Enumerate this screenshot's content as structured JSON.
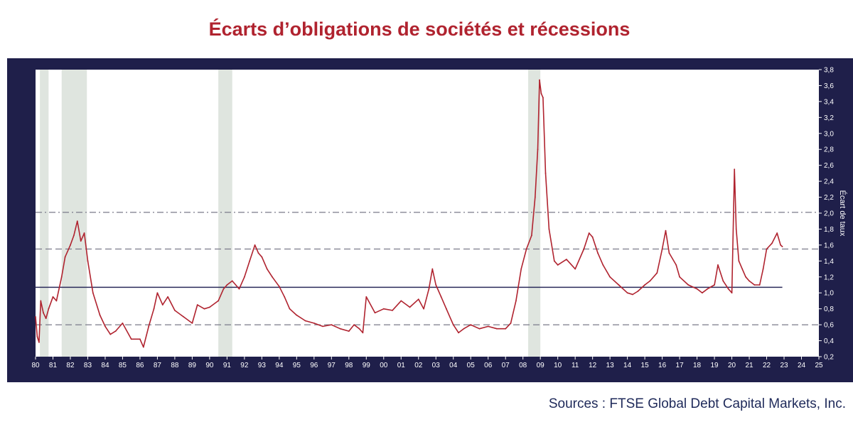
{
  "title": "Écarts d’obligations de sociétés et récessions",
  "source": "Sources : FTSE Global Debt Capital Markets, Inc.",
  "colors": {
    "frame": "#1f1f4a",
    "plot_bg": "#ffffff",
    "line": "#b0232f",
    "recession": "#dfe5df",
    "mean_line": "#2a2a5a",
    "band_line": "#7a7a8a",
    "title": "#b0232f"
  },
  "chart_data": {
    "type": "line",
    "title": "Écarts d’obligations de sociétés et récessions",
    "ylabel": "Écart de taux",
    "xlabel": "",
    "ylim": [
      0.2,
      3.8
    ],
    "xlim": [
      1980,
      2025
    ],
    "x_tick_labels": [
      "80",
      "81",
      "82",
      "83",
      "84",
      "85",
      "86",
      "87",
      "88",
      "89",
      "90",
      "91",
      "92",
      "93",
      "94",
      "95",
      "96",
      "97",
      "98",
      "99",
      "00",
      "01",
      "02",
      "03",
      "04",
      "05",
      "06",
      "07",
      "08",
      "09",
      "10",
      "11",
      "12",
      "13",
      "14",
      "15",
      "16",
      "17",
      "18",
      "19",
      "20",
      "21",
      "22",
      "23",
      "24",
      "25"
    ],
    "y_tick_labels": [
      "0,2",
      "0,4",
      "0,6",
      "0,8",
      "1,0",
      "1,2",
      "1,4",
      "1,6",
      "1,8",
      "2,0",
      "2,2",
      "2,4",
      "2,6",
      "2,8",
      "3,0",
      "3,2",
      "3,4",
      "3,6",
      "3,8"
    ],
    "y_ticks": [
      0.2,
      0.4,
      0.6,
      0.8,
      1.0,
      1.2,
      1.4,
      1.6,
      1.8,
      2.0,
      2.2,
      2.4,
      2.6,
      2.8,
      3.0,
      3.2,
      3.4,
      3.6,
      3.8
    ],
    "recessions": [
      [
        1980.25,
        1980.75
      ],
      [
        1981.5,
        1982.95
      ],
      [
        1990.5,
        1991.3
      ],
      [
        2008.3,
        2009.0
      ]
    ],
    "reference_lines": [
      {
        "name": "mean",
        "value": 1.07,
        "style": "solid",
        "x_end": 2022.9
      },
      {
        "name": "plus-1-sd",
        "value": 1.55,
        "style": "dashed"
      },
      {
        "name": "minus-1-sd",
        "value": 0.6,
        "style": "dashed"
      },
      {
        "name": "plus-2-sd",
        "value": 2.01,
        "style": "dashdot"
      }
    ],
    "series": [
      {
        "name": "Écart de taux",
        "x": [
          1980.0,
          1980.1,
          1980.2,
          1980.3,
          1980.45,
          1980.6,
          1980.75,
          1981.0,
          1981.2,
          1981.5,
          1981.7,
          1982.0,
          1982.2,
          1982.4,
          1982.6,
          1982.8,
          1983.0,
          1983.3,
          1983.7,
          1984.0,
          1984.3,
          1984.6,
          1985.0,
          1985.5,
          1986.0,
          1986.2,
          1986.5,
          1986.8,
          1987.0,
          1987.3,
          1987.6,
          1988.0,
          1988.5,
          1989.0,
          1989.3,
          1989.7,
          1990.0,
          1990.5,
          1990.8,
          1991.0,
          1991.3,
          1991.7,
          1992.0,
          1992.3,
          1992.6,
          1992.8,
          1993.0,
          1993.3,
          1993.6,
          1994.0,
          1994.3,
          1994.6,
          1995.0,
          1995.5,
          1996.0,
          1996.5,
          1997.0,
          1997.5,
          1998.0,
          1998.3,
          1998.6,
          1998.8,
          1999.0,
          1999.5,
          2000.0,
          2000.5,
          2001.0,
          2001.5,
          2002.0,
          2002.3,
          2002.6,
          2002.8,
          2003.0,
          2003.3,
          2003.6,
          2004.0,
          2004.3,
          2004.6,
          2005.0,
          2005.5,
          2006.0,
          2006.5,
          2007.0,
          2007.3,
          2007.6,
          2007.9,
          2008.2,
          2008.5,
          2008.7,
          2008.85,
          2008.95,
          2009.05,
          2009.15,
          2009.3,
          2009.5,
          2009.8,
          2010.0,
          2010.5,
          2011.0,
          2011.5,
          2011.8,
          2012.0,
          2012.3,
          2012.6,
          2013.0,
          2013.5,
          2014.0,
          2014.3,
          2014.6,
          2015.0,
          2015.3,
          2015.7,
          2016.0,
          2016.2,
          2016.4,
          2016.8,
          2017.0,
          2017.5,
          2018.0,
          2018.3,
          2018.6,
          2019.0,
          2019.2,
          2019.5,
          2019.8,
          2020.0,
          2020.15,
          2020.25,
          2020.4,
          2020.6,
          2020.8,
          2021.0,
          2021.3,
          2021.6,
          2021.8,
          2022.0,
          2022.3,
          2022.6,
          2022.8,
          2022.9
        ],
        "y": [
          0.7,
          0.45,
          0.38,
          0.9,
          0.75,
          0.68,
          0.8,
          0.95,
          0.9,
          1.2,
          1.45,
          1.6,
          1.72,
          1.9,
          1.65,
          1.75,
          1.4,
          1.0,
          0.72,
          0.58,
          0.48,
          0.52,
          0.62,
          0.42,
          0.42,
          0.32,
          0.58,
          0.8,
          1.0,
          0.85,
          0.95,
          0.78,
          0.7,
          0.62,
          0.85,
          0.8,
          0.82,
          0.9,
          1.05,
          1.1,
          1.15,
          1.05,
          1.2,
          1.4,
          1.6,
          1.5,
          1.45,
          1.3,
          1.2,
          1.08,
          0.95,
          0.8,
          0.72,
          0.65,
          0.62,
          0.58,
          0.6,
          0.55,
          0.52,
          0.6,
          0.55,
          0.5,
          0.95,
          0.75,
          0.8,
          0.78,
          0.9,
          0.82,
          0.92,
          0.8,
          1.05,
          1.3,
          1.1,
          0.95,
          0.8,
          0.6,
          0.5,
          0.55,
          0.6,
          0.55,
          0.58,
          0.55,
          0.55,
          0.62,
          0.9,
          1.3,
          1.55,
          1.72,
          2.2,
          2.8,
          3.67,
          3.5,
          3.45,
          2.5,
          1.8,
          1.4,
          1.35,
          1.42,
          1.3,
          1.55,
          1.75,
          1.7,
          1.5,
          1.35,
          1.2,
          1.1,
          1.0,
          0.98,
          1.02,
          1.1,
          1.15,
          1.25,
          1.55,
          1.78,
          1.5,
          1.35,
          1.2,
          1.1,
          1.05,
          1.0,
          1.05,
          1.1,
          1.35,
          1.15,
          1.05,
          1.0,
          2.55,
          1.8,
          1.4,
          1.3,
          1.2,
          1.15,
          1.1,
          1.1,
          1.3,
          1.55,
          1.62,
          1.75,
          1.6,
          1.58
        ]
      }
    ]
  }
}
